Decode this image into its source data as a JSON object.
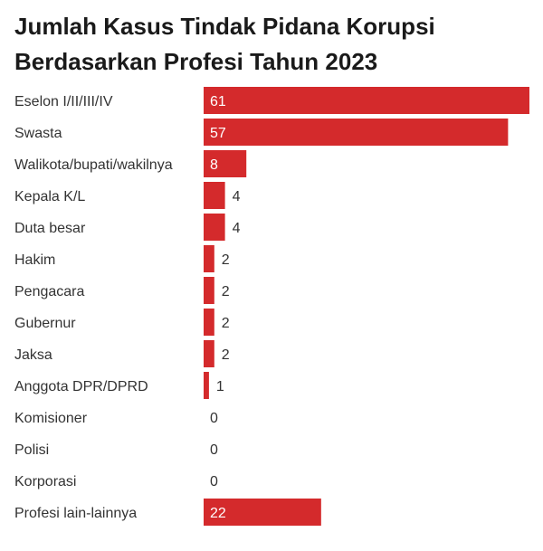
{
  "chart_data": {
    "type": "bar",
    "orientation": "horizontal",
    "title": "Jumlah Kasus Tindak Pidana Korupsi Berdasarkan Profesi Tahun 2023",
    "categories": [
      "Eselon I/II/III/IV",
      "Swasta",
      "Walikota/bupati/wakilnya",
      "Kepala K/L",
      "Duta besar",
      "Hakim",
      "Pengacara",
      "Gubernur",
      "Jaksa",
      "Anggota DPR/DPRD",
      "Komisioner",
      "Polisi",
      "Korporasi",
      "Profesi lain-lainnya"
    ],
    "values": [
      61,
      57,
      8,
      4,
      4,
      2,
      2,
      2,
      2,
      1,
      0,
      0,
      0,
      22
    ],
    "xlim": [
      0,
      61
    ],
    "grid": false,
    "bar_color": "#d42a2c"
  }
}
